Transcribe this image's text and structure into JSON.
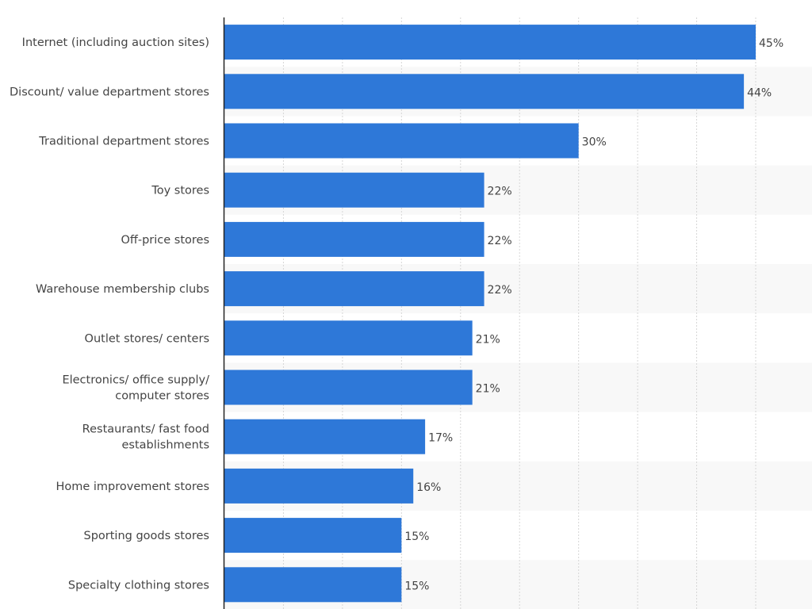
{
  "chart_data": {
    "type": "bar",
    "orientation": "horizontal",
    "title": "",
    "xlabel": "",
    "ylabel": "",
    "xlim": [
      0,
      50
    ],
    "grid": true,
    "value_suffix": "%",
    "bar_color": "#2e78d8",
    "categories": [
      [
        "Internet (including auction sites)"
      ],
      [
        "Discount/ value department stores"
      ],
      [
        "Traditional department stores"
      ],
      [
        "Toy stores"
      ],
      [
        "Off-price stores"
      ],
      [
        "Warehouse membership clubs"
      ],
      [
        "Outlet stores/ centers"
      ],
      [
        "Electronics/ office supply/",
        "computer stores"
      ],
      [
        "Restaurants/ fast food",
        "establishments"
      ],
      [
        "Home improvement stores"
      ],
      [
        "Sporting goods stores"
      ],
      [
        "Specialty clothing stores"
      ]
    ],
    "values": [
      45,
      44,
      30,
      22,
      22,
      22,
      21,
      21,
      17,
      16,
      15,
      15
    ],
    "value_labels": [
      "45%",
      "44%",
      "30%",
      "22%",
      "22%",
      "22%",
      "21%",
      "21%",
      "17%",
      "16%",
      "15%",
      "15%"
    ]
  }
}
